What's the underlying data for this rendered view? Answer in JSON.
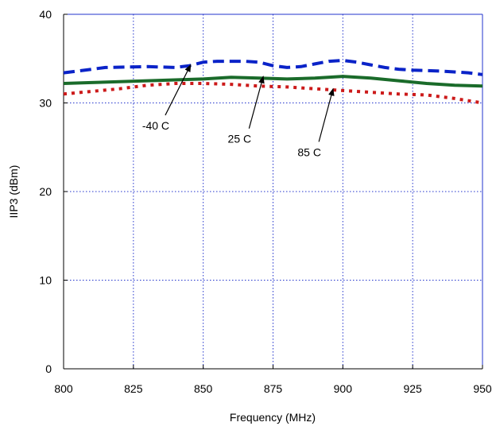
{
  "chart_data": {
    "type": "line",
    "title": "",
    "xlabel": "Frequency (MHz)",
    "ylabel": "IIP3 (dBm)",
    "xlim": [
      800,
      950
    ],
    "ylim": [
      0,
      40
    ],
    "xticks": [
      800,
      825,
      850,
      875,
      900,
      925,
      950
    ],
    "yticks": [
      0,
      10,
      20,
      30,
      40
    ],
    "grid": true,
    "legend": "none",
    "series": [
      {
        "name": "-40 C",
        "color": "#0a23c8",
        "dash": "dashed",
        "x": [
          800,
          805,
          815,
          830,
          840,
          845,
          850,
          855,
          860,
          865,
          870,
          875,
          880,
          885,
          890,
          895,
          900,
          905,
          910,
          915,
          920,
          925,
          935,
          945,
          950
        ],
        "y": [
          33.4,
          33.6,
          34.0,
          34.1,
          34.0,
          34.2,
          34.6,
          34.7,
          34.7,
          34.7,
          34.6,
          34.2,
          34.0,
          34.1,
          34.4,
          34.7,
          34.8,
          34.6,
          34.3,
          34.0,
          33.8,
          33.7,
          33.6,
          33.4,
          33.2
        ]
      },
      {
        "name": "25 C",
        "color": "#1a6b2a",
        "dash": "solid",
        "x": [
          800,
          810,
          820,
          830,
          840,
          850,
          860,
          870,
          880,
          890,
          900,
          910,
          920,
          930,
          940,
          950
        ],
        "y": [
          32.2,
          32.3,
          32.4,
          32.5,
          32.6,
          32.7,
          32.9,
          32.8,
          32.7,
          32.8,
          33.0,
          32.8,
          32.5,
          32.2,
          32.0,
          31.9
        ]
      },
      {
        "name": "85 C",
        "color": "#cc1a1a",
        "dash": "dotted",
        "x": [
          800,
          810,
          820,
          830,
          840,
          850,
          860,
          870,
          880,
          890,
          900,
          910,
          920,
          930,
          940,
          950
        ],
        "y": [
          31.0,
          31.3,
          31.6,
          32.0,
          32.2,
          32.2,
          32.1,
          31.9,
          31.8,
          31.6,
          31.4,
          31.2,
          31.0,
          30.9,
          30.5,
          30.0
        ]
      }
    ],
    "annotations": [
      {
        "text": "-40 C",
        "x": 833,
        "y": 27.0,
        "arrow_to": [
          845.5,
          34.3
        ]
      },
      {
        "text": "25 C",
        "x": 863,
        "y": 25.5,
        "arrow_to": [
          871.5,
          33.0
        ]
      },
      {
        "text": "85 C",
        "x": 888,
        "y": 24.0,
        "arrow_to": [
          896.5,
          31.6
        ]
      }
    ]
  }
}
